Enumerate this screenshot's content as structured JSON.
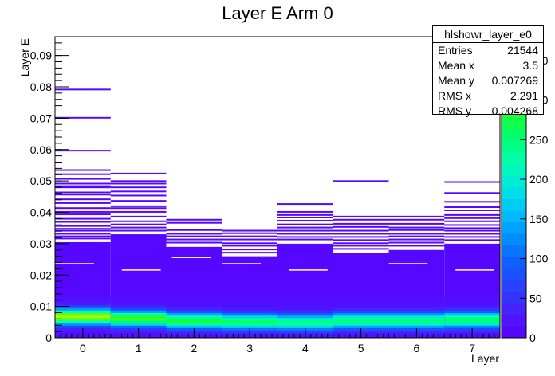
{
  "chart_data": {
    "type": "heatmap",
    "title": "Layer E Arm 0",
    "xlabel": "Layer",
    "ylabel": "Layer E",
    "x_ticks": [
      "0",
      "1",
      "2",
      "3",
      "4",
      "5",
      "6",
      "7"
    ],
    "y_ticks": [
      "0",
      "0.01",
      "0.02",
      "0.03",
      "0.04",
      "0.05",
      "0.06",
      "0.07",
      "0.08",
      "0.09"
    ],
    "xlim": [
      -0.5,
      7.5
    ],
    "ylim": [
      0,
      0.096
    ],
    "colorbar": {
      "min": 0,
      "max": 380,
      "ticks": [
        "0",
        "50",
        "100",
        "150",
        "200",
        "250",
        "300",
        "350"
      ]
    },
    "layers": [
      {
        "layer": 0,
        "bulk_top": 0.0305,
        "peak": 0.0068,
        "peak_level": 0.85,
        "lines": [
          0.079,
          0.07,
          0.0595,
          0.0533,
          0.052,
          0.0505,
          0.049,
          0.0482,
          0.0478,
          0.0462,
          0.0455,
          0.044,
          0.0428,
          0.0412,
          0.04,
          0.0392,
          0.0378,
          0.0368,
          0.0355,
          0.0346,
          0.034,
          0.033,
          0.0322,
          0.0315
        ]
      },
      {
        "layer": 1,
        "bulk_top": 0.033,
        "peak": 0.0062,
        "peak_level": 0.75,
        "lines": [
          0.0522,
          0.0498,
          0.049,
          0.0478,
          0.0465,
          0.0452,
          0.0435,
          0.0418,
          0.0412,
          0.04,
          0.0385,
          0.037,
          0.036,
          0.035,
          0.034
        ]
      },
      {
        "layer": 2,
        "bulk_top": 0.029,
        "peak": 0.0055,
        "peak_level": 0.7,
        "lines": [
          0.0375,
          0.0365,
          0.0342,
          0.033,
          0.0322,
          0.0312,
          0.0302
        ]
      },
      {
        "layer": 3,
        "bulk_top": 0.026,
        "peak": 0.0052,
        "peak_level": 0.65,
        "lines": [
          0.034,
          0.0332,
          0.0322,
          0.0312,
          0.03,
          0.0292,
          0.028,
          0.027
        ]
      },
      {
        "layer": 4,
        "bulk_top": 0.03,
        "peak": 0.005,
        "peak_level": 0.6,
        "lines": [
          0.0425,
          0.04,
          0.039,
          0.0382,
          0.0372,
          0.036,
          0.035,
          0.034,
          0.033,
          0.032,
          0.0312
        ]
      },
      {
        "layer": 5,
        "bulk_top": 0.027,
        "peak": 0.0055,
        "peak_level": 0.62,
        "lines": [
          0.0498,
          0.0385,
          0.0375,
          0.0362,
          0.0352,
          0.034,
          0.033,
          0.032,
          0.031,
          0.03,
          0.0292,
          0.0282
        ]
      },
      {
        "layer": 6,
        "bulk_top": 0.028,
        "peak": 0.0055,
        "peak_level": 0.62,
        "lines": [
          0.0385,
          0.0375,
          0.0362,
          0.035,
          0.0342,
          0.033,
          0.0322,
          0.0312,
          0.0302,
          0.0292
        ]
      },
      {
        "layer": 7,
        "bulk_top": 0.03,
        "peak": 0.0058,
        "peak_level": 0.65,
        "lines": [
          0.0495,
          0.046,
          0.0432,
          0.0415,
          0.0405,
          0.039,
          0.038,
          0.037,
          0.0358,
          0.0348,
          0.034,
          0.033,
          0.032,
          0.031
        ]
      }
    ]
  },
  "stats_box": {
    "name": "hlshowr_layer_e0",
    "rows": [
      {
        "label": "Entries",
        "value": "21544"
      },
      {
        "label": "Mean x",
        "value": "3.5"
      },
      {
        "label": "Mean y",
        "value": "0.007269"
      },
      {
        "label": "RMS x",
        "value": "2.291"
      },
      {
        "label": "RMS y",
        "value": "0.004268"
      }
    ]
  }
}
